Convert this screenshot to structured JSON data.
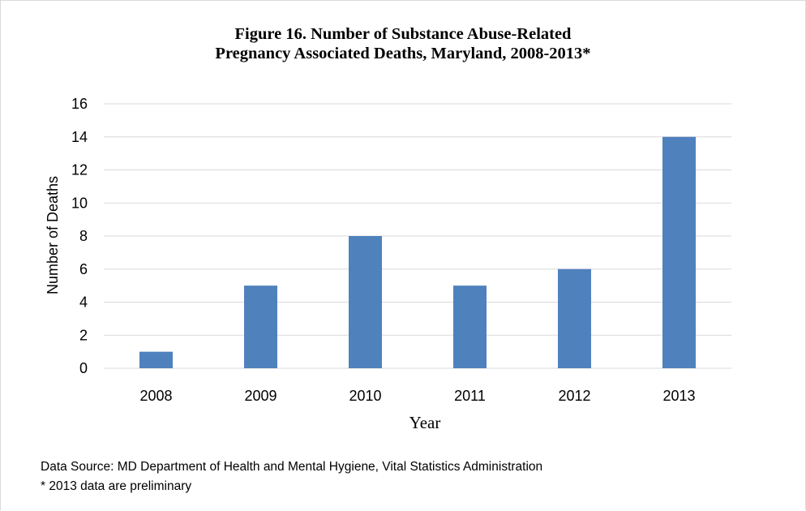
{
  "chart_data": {
    "type": "bar",
    "title_line1": "Figure 16. Number of Substance Abuse-Related",
    "title_line2": "Pregnancy Associated Deaths, Maryland, 2008-2013*",
    "xlabel": "Year",
    "ylabel": "Number of Deaths",
    "categories": [
      "2008",
      "2009",
      "2010",
      "2011",
      "2012",
      "2013"
    ],
    "values": [
      1,
      5,
      8,
      5,
      6,
      14
    ],
    "ylim": [
      0,
      16
    ],
    "yticks": [
      0,
      2,
      4,
      6,
      8,
      10,
      12,
      14,
      16
    ],
    "grid": true,
    "legend": "none",
    "bar_color": "#4f81bd",
    "grid_color": "#d9d9d9"
  },
  "footnotes": {
    "source": "Data Source: MD Department of Health and Mental Hygiene, Vital Statistics Administration",
    "note": "* 2013 data are preliminary"
  }
}
